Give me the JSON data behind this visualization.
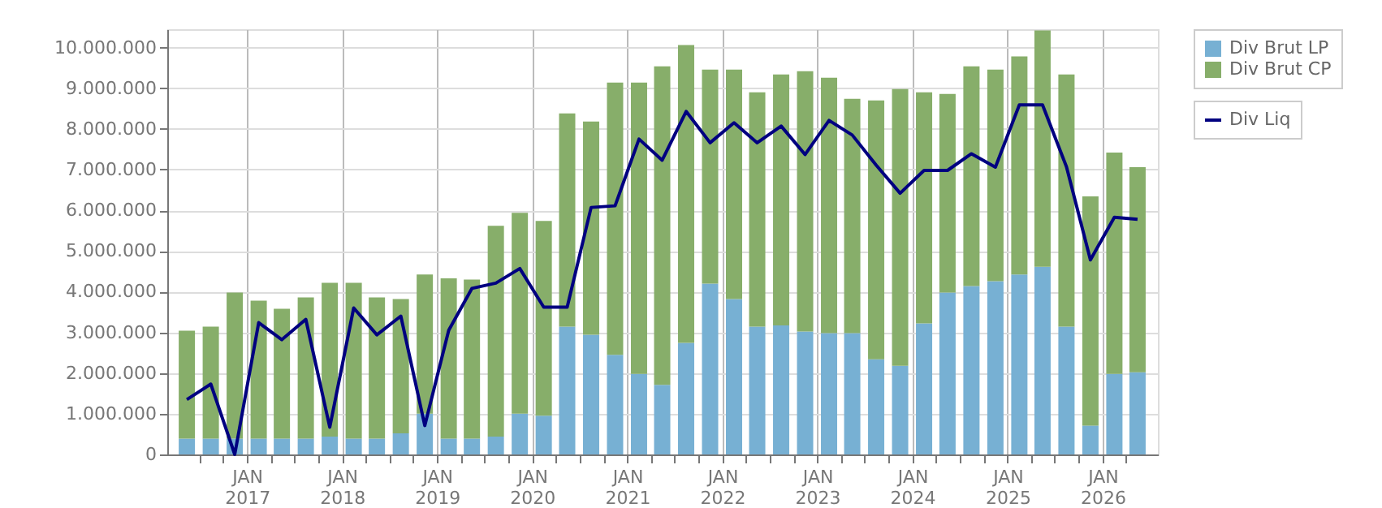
{
  "chart_data": {
    "type": "bar",
    "stacked": true,
    "legend": "right",
    "grid": true,
    "x": [
      "2016-05-15",
      "2016-08-15",
      "2016-11-15",
      "2017-02-15",
      "2017-05-15",
      "2017-08-15",
      "2017-11-15",
      "2018-02-15",
      "2018-05-15",
      "2018-08-15",
      "2018-11-15",
      "2019-02-15",
      "2019-05-15",
      "2019-08-15",
      "2019-11-15",
      "2020-02-15",
      "2020-05-15",
      "2020-08-15",
      "2020-11-15",
      "2021-02-15",
      "2021-05-15",
      "2021-08-15",
      "2021-11-15",
      "2022-02-15",
      "2022-05-15",
      "2022-08-15",
      "2022-11-15",
      "2023-02-15",
      "2023-05-15",
      "2023-08-15",
      "2023-11-15",
      "2024-02-15",
      "2024-05-15",
      "2024-08-15",
      "2024-11-15",
      "2025-02-15",
      "2025-05-15",
      "2025-08-15",
      "2025-11-15",
      "2026-02-15",
      "2026-05-15"
    ],
    "xlim": [
      "2016-04-01",
      "2026-07-01"
    ],
    "xticks": [
      {
        "value": "2016-07-01",
        "label": null
      },
      {
        "value": "2016-10-01",
        "label": null
      },
      {
        "value": "2017-01-01",
        "label": "JAN 2017"
      },
      {
        "value": "2017-04-01",
        "label": null
      },
      {
        "value": "2017-07-01",
        "label": null
      },
      {
        "value": "2017-10-01",
        "label": null
      },
      {
        "value": "2018-01-01",
        "label": "JAN 2018"
      },
      {
        "value": "2018-04-01",
        "label": null
      },
      {
        "value": "2018-07-01",
        "label": null
      },
      {
        "value": "2018-10-01",
        "label": null
      },
      {
        "value": "2019-01-01",
        "label": "JAN 2019"
      },
      {
        "value": "2019-04-01",
        "label": null
      },
      {
        "value": "2019-07-01",
        "label": null
      },
      {
        "value": "2019-10-01",
        "label": null
      },
      {
        "value": "2020-01-01",
        "label": "JAN 2020"
      },
      {
        "value": "2020-04-01",
        "label": null
      },
      {
        "value": "2020-07-01",
        "label": null
      },
      {
        "value": "2020-10-01",
        "label": null
      },
      {
        "value": "2021-01-01",
        "label": "JAN 2021"
      },
      {
        "value": "2021-04-01",
        "label": null
      },
      {
        "value": "2021-07-01",
        "label": null
      },
      {
        "value": "2021-10-01",
        "label": null
      },
      {
        "value": "2022-01-01",
        "label": "JAN 2022"
      },
      {
        "value": "2022-04-01",
        "label": null
      },
      {
        "value": "2022-07-01",
        "label": null
      },
      {
        "value": "2022-10-01",
        "label": null
      },
      {
        "value": "2023-01-01",
        "label": "JAN 2023"
      },
      {
        "value": "2023-04-01",
        "label": null
      },
      {
        "value": "2023-07-01",
        "label": null
      },
      {
        "value": "2023-10-01",
        "label": null
      },
      {
        "value": "2024-01-01",
        "label": "JAN 2024"
      },
      {
        "value": "2024-04-01",
        "label": null
      },
      {
        "value": "2024-07-01",
        "label": null
      },
      {
        "value": "2024-10-01",
        "label": null
      },
      {
        "value": "2025-01-01",
        "label": "JAN 2025"
      },
      {
        "value": "2025-04-01",
        "label": null
      },
      {
        "value": "2025-07-01",
        "label": null
      },
      {
        "value": "2025-10-01",
        "label": null
      },
      {
        "value": "2026-01-01",
        "label": "JAN 2026"
      },
      {
        "value": "2026-04-01",
        "label": null
      }
    ],
    "ylim": [
      0,
      10450000
    ],
    "yticks": [
      {
        "value": 0,
        "label": "0"
      },
      {
        "value": 1000000,
        "label": "1.000.000"
      },
      {
        "value": 2000000,
        "label": "2.000.000"
      },
      {
        "value": 3000000,
        "label": "3.000.000"
      },
      {
        "value": 4000000,
        "label": "4.000.000"
      },
      {
        "value": 5000000,
        "label": "5.000.000"
      },
      {
        "value": 6000000,
        "label": "6.000.000"
      },
      {
        "value": 7000000,
        "label": "7.000.000"
      },
      {
        "value": 8000000,
        "label": "8.000.000"
      },
      {
        "value": 9000000,
        "label": "9.000.000"
      },
      {
        "value": 10000000,
        "label": "10.000.000"
      }
    ],
    "series": [
      {
        "name": "Div Brut LP",
        "color": "#77b0d3",
        "values": [
          390000,
          390000,
          390000,
          390000,
          390000,
          390000,
          440000,
          390000,
          390000,
          520000,
          1000000,
          390000,
          390000,
          440000,
          1000000,
          950000,
          3140000,
          2940000,
          2450000,
          1980000,
          1710000,
          2740000,
          4200000,
          3820000,
          3140000,
          3170000,
          3020000,
          2980000,
          2980000,
          2340000,
          2180000,
          3220000,
          3980000,
          4140000,
          4260000,
          4420000,
          4610000,
          3140000,
          710000,
          1980000,
          2020000
        ]
      },
      {
        "name": "Div Brut CP",
        "color": "#87ae6a",
        "values": [
          2650000,
          2750000,
          3590000,
          3390000,
          3190000,
          3470000,
          3780000,
          3830000,
          3470000,
          3300000,
          3420000,
          3940000,
          3910000,
          5180000,
          4940000,
          4790000,
          5240000,
          5240000,
          6690000,
          7160000,
          7830000,
          7320000,
          5260000,
          5640000,
          5760000,
          6170000,
          6400000,
          6280000,
          5760000,
          6360000,
          6800000,
          5680000,
          4880000,
          5400000,
          5200000,
          5360000,
          5810000,
          6200000,
          5630000,
          5440000,
          5040000
        ]
      },
      {
        "name": "Div Liq",
        "type": "line",
        "color": "#000080",
        "line_style": "solid",
        "values": [
          1350000,
          1730000,
          0,
          3240000,
          2820000,
          3320000,
          670000,
          3600000,
          2940000,
          3400000,
          710000,
          3050000,
          4080000,
          4210000,
          4570000,
          3620000,
          3620000,
          6070000,
          6110000,
          7750000,
          7230000,
          8430000,
          7660000,
          8150000,
          7660000,
          8070000,
          7370000,
          8210000,
          7850000,
          7110000,
          6420000,
          6980000,
          6980000,
          7390000,
          7060000,
          8590000,
          8590000,
          7070000,
          4780000,
          5830000,
          5780000
        ]
      }
    ]
  }
}
